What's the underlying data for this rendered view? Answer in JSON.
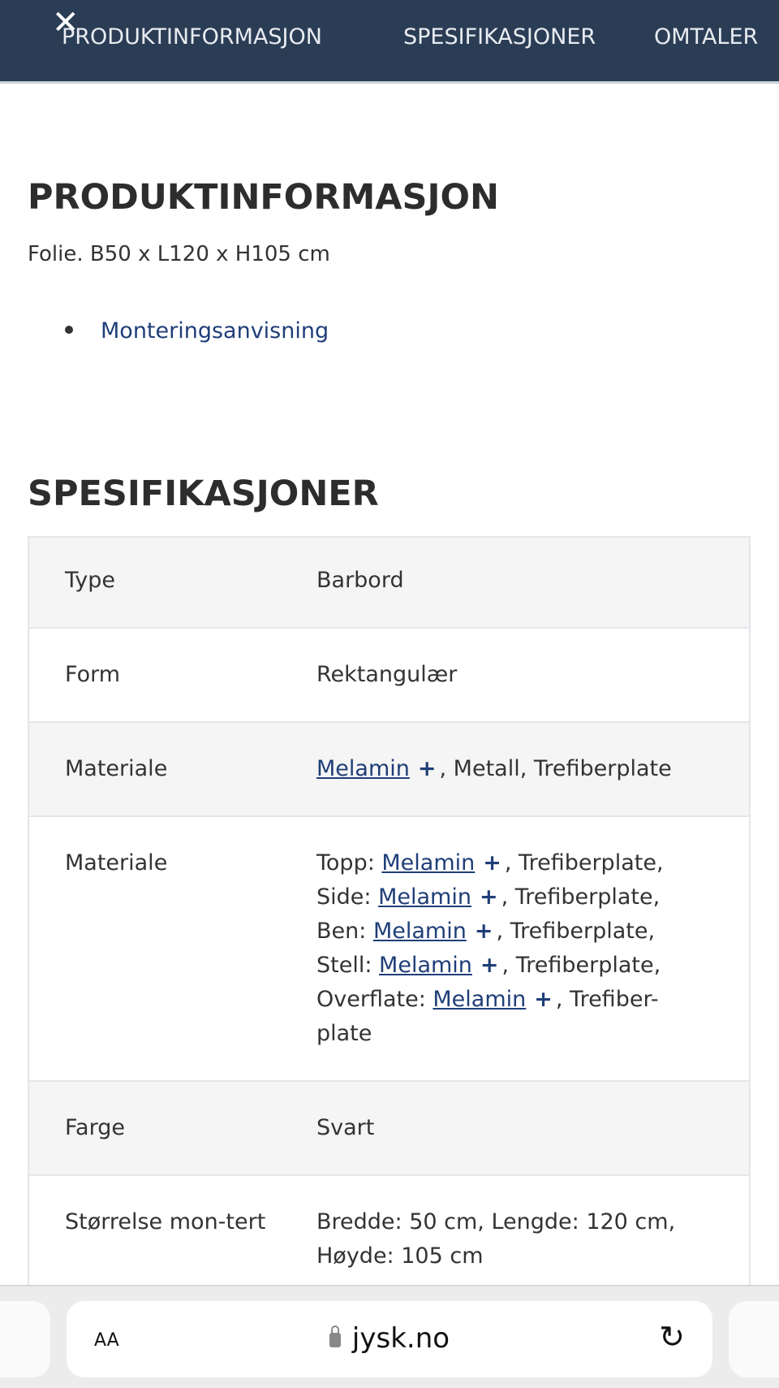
{
  "nav": {
    "close_icon": "close-icon",
    "tabs": [
      "PRODUKTINFORMASJON",
      "SPESIFIKASJONER",
      "OMTALER"
    ]
  },
  "product_info": {
    "heading": "PRODUKTINFORMASJON",
    "description": "Folie. B50 x L120 x H105 cm",
    "links": [
      "Monteringsanvisning"
    ]
  },
  "specs": {
    "heading": "SPESIFIKASJONER",
    "rows": [
      {
        "label": "Type",
        "value": "Barbord"
      },
      {
        "label": "Form",
        "value": "Rektangulær"
      },
      {
        "label": "Materiale",
        "link": "Melamin",
        "plus": "+",
        "rest": ", Metall, Trefiberplate"
      },
      {
        "label": "Materiale",
        "lines": [
          {
            "prefix": "Topp: ",
            "link": "Melamin",
            "plus": "+",
            "rest": ", Trefiberplate,"
          },
          {
            "prefix": "Side: ",
            "link": "Melamin",
            "plus": "+",
            "rest": ", Trefiberplate,"
          },
          {
            "prefix": "Ben: ",
            "link": "Melamin",
            "plus": "+",
            "rest": ", Trefiberplate,"
          },
          {
            "prefix": "Stell: ",
            "link": "Melamin",
            "plus": "+",
            "rest": ", Trefiberplate,"
          },
          {
            "prefix": "Overflate: ",
            "link": "Melamin",
            "plus": "+",
            "rest": ", Trefiber-"
          }
        ],
        "tail": "plate"
      },
      {
        "label": "Farge",
        "value": "Svart"
      },
      {
        "label": "Størrelse mon-tert",
        "value": "Bredde: 50 cm, Lengde: 120 cm, Høyde: 105 cm"
      }
    ]
  },
  "browser": {
    "text_size": "AA",
    "url": "jysk.no",
    "lock_icon": "lock-icon",
    "reload_icon": "reload-icon"
  }
}
